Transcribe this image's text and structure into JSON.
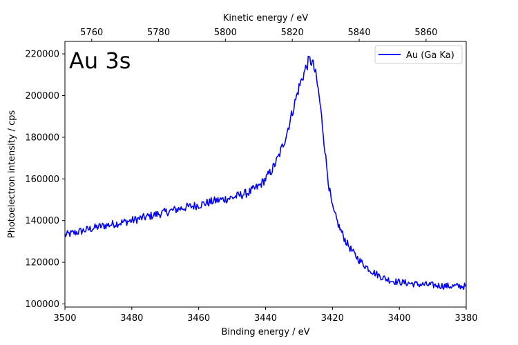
{
  "chart_data": {
    "type": "line",
    "xlabel": "Binding energy / eV",
    "x2label": "Kinetic energy / eV",
    "ylabel": "Photoelectron intensity / cps",
    "annotation": "Au 3s",
    "xlim": [
      3500,
      3380
    ],
    "ylim": [
      98500,
      226000
    ],
    "x_ticks": [
      3500,
      3480,
      3460,
      3440,
      3420,
      3400,
      3380
    ],
    "x2_ticks": [
      5760,
      5780,
      5800,
      5820,
      5840,
      5860
    ],
    "x2_offset": 9252,
    "y_ticks": [
      100000,
      120000,
      140000,
      160000,
      180000,
      200000,
      220000
    ],
    "legend": {
      "position": "top-right"
    },
    "grid": false,
    "series": [
      {
        "name": "Au (Ga Ka)",
        "color": "#0000ff",
        "x": [
          3500,
          3495,
          3490,
          3485,
          3480,
          3475,
          3470,
          3465,
          3460,
          3455,
          3450,
          3445,
          3442,
          3440,
          3438,
          3436,
          3434,
          3432,
          3430,
          3428,
          3427,
          3426,
          3425,
          3424,
          3423,
          3422,
          3421,
          3420,
          3418,
          3416,
          3414,
          3412,
          3410,
          3408,
          3406,
          3404,
          3402,
          3400,
          3395,
          3390,
          3385,
          3380
        ],
        "y": [
          133000,
          135000,
          137000,
          138500,
          140000,
          142000,
          144000,
          146000,
          147500,
          149500,
          151000,
          153500,
          156500,
          160000,
          164500,
          171000,
          180000,
          192000,
          204000,
          213000,
          217000,
          216000,
          210000,
          200000,
          186000,
          170000,
          156000,
          146000,
          137000,
          130000,
          125000,
          121000,
          118000,
          115500,
          113500,
          112000,
          111000,
          110500,
          109500,
          109000,
          108500,
          108500
        ]
      }
    ]
  }
}
